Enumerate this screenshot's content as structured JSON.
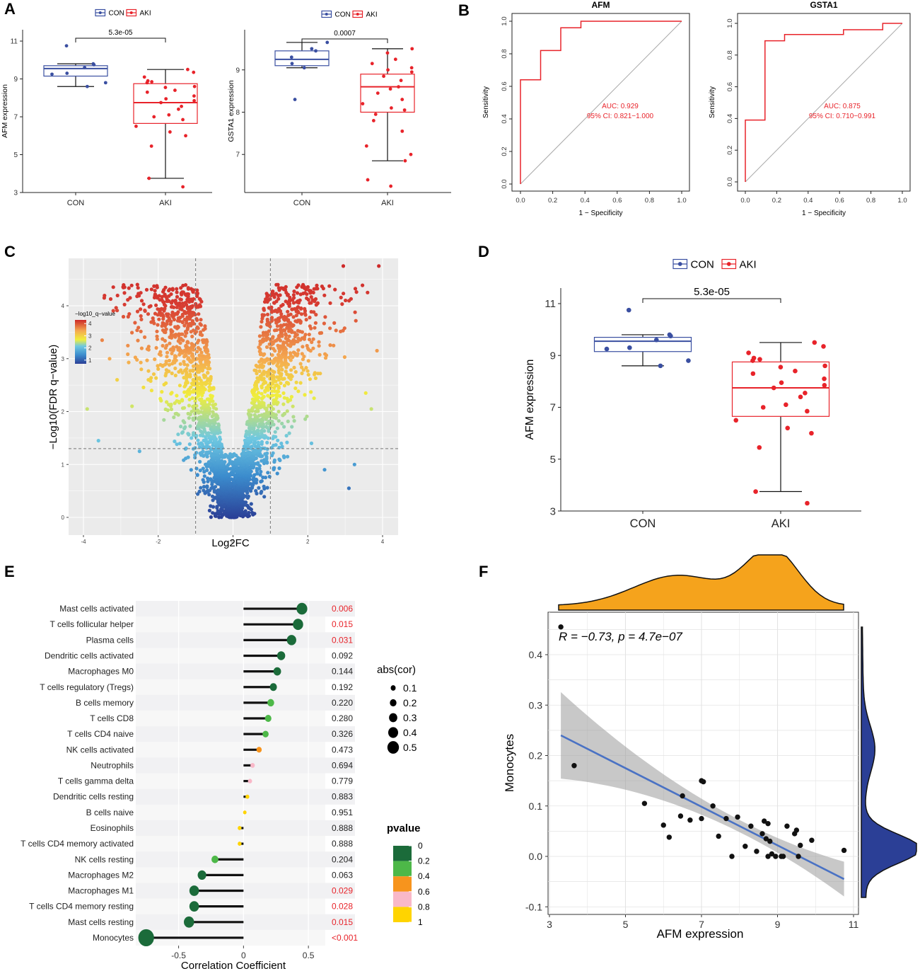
{
  "colors": {
    "con": "#3a4fa1",
    "aki": "#e8232a",
    "roc": "#e8232a",
    "diag": "#a8a8a8",
    "loess": "#4a72c4",
    "orange": "#f5a31c",
    "navy": "#2b3f96"
  },
  "panel_labels": {
    "A": "A",
    "B": "B",
    "C": "C",
    "D": "D",
    "E": "E",
    "F": "F"
  },
  "chart_data": [
    {
      "id": "A1",
      "type": "box",
      "legend": [
        "CON",
        "AKI"
      ],
      "categories": [
        "CON",
        "AKI"
      ],
      "ylabel": "AFM expression",
      "ylim": [
        3,
        11.6
      ],
      "yticks": [
        3,
        5,
        7,
        9,
        11
      ],
      "pvalue": "5.3e-05",
      "boxes": [
        {
          "group": "CON",
          "q1": 9.15,
          "median": 9.55,
          "q3": 9.7,
          "whisker_low": 8.6,
          "whisker_high": 9.8
        },
        {
          "group": "AKI",
          "q1": 6.65,
          "median": 7.75,
          "q3": 8.75,
          "whisker_low": 3.75,
          "whisker_high": 9.5
        }
      ],
      "points": {
        "CON": [
          10.75,
          9.8,
          9.75,
          9.6,
          9.3,
          9.25,
          8.8,
          8.6
        ],
        "AKI": [
          9.5,
          9.35,
          9.1,
          8.9,
          8.85,
          8.8,
          8.6,
          8.55,
          8.4,
          8.3,
          8.1,
          7.95,
          7.85,
          7.75,
          7.55,
          7.4,
          7.1,
          7.0,
          6.85,
          6.5,
          6.2,
          6.0,
          5.45,
          3.75,
          3.3
        ]
      }
    },
    {
      "id": "A2",
      "type": "box",
      "legend": [
        "CON",
        "AKI"
      ],
      "categories": [
        "CON",
        "AKI"
      ],
      "ylabel": "GSTA1 expression",
      "ylim": [
        6.1,
        9.95
      ],
      "yticks": [
        7,
        8,
        9
      ],
      "pvalue": "0.0007",
      "boxes": [
        {
          "group": "CON",
          "q1": 9.1,
          "median": 9.25,
          "q3": 9.45,
          "whisker_low": 9.05,
          "whisker_high": 9.65
        },
        {
          "group": "AKI",
          "q1": 8.0,
          "median": 8.6,
          "q3": 8.9,
          "whisker_low": 6.85,
          "whisker_high": 9.5
        }
      ],
      "points": {
        "CON": [
          9.65,
          9.5,
          9.45,
          9.3,
          9.15,
          9.05,
          8.3
        ],
        "AKI": [
          9.5,
          9.4,
          9.25,
          9.15,
          9.05,
          9.0,
          8.95,
          8.85,
          8.75,
          8.6,
          8.55,
          8.45,
          8.3,
          8.2,
          8.1,
          8.05,
          7.95,
          7.8,
          7.55,
          7.2,
          7.0,
          6.85,
          6.4,
          6.25
        ]
      }
    },
    {
      "id": "B1",
      "type": "line",
      "title": "AFM",
      "xlabel": "1 − Specificity",
      "ylabel": "Sensitivity",
      "xlim": [
        0,
        1
      ],
      "ylim": [
        0,
        1
      ],
      "xticks": [
        0.0,
        0.2,
        0.4,
        0.6,
        0.8,
        1.0
      ],
      "yticks": [
        0.0,
        0.2,
        0.4,
        0.6,
        0.8,
        1.0
      ],
      "x": [
        0,
        0,
        0.125,
        0.125,
        0.25,
        0.25,
        0.375,
        0.375,
        1.0
      ],
      "y": [
        0,
        0.64,
        0.64,
        0.82,
        0.82,
        0.96,
        0.96,
        1.0,
        1.0
      ],
      "annotation": [
        "AUC: 0.929",
        "95% CI: 0.821−1.000"
      ]
    },
    {
      "id": "B2",
      "type": "line",
      "title": "GSTA1",
      "xlabel": "1 − Specificity",
      "ylabel": "Sensitivity",
      "xlim": [
        0,
        1
      ],
      "ylim": [
        0,
        1
      ],
      "xticks": [
        0.0,
        0.2,
        0.4,
        0.6,
        0.8,
        1.0
      ],
      "yticks": [
        0.0,
        0.2,
        0.4,
        0.6,
        0.8,
        1.0
      ],
      "x": [
        0,
        0,
        0.125,
        0.125,
        0.25,
        0.25,
        0.625,
        0.625,
        0.875,
        0.875,
        1.0
      ],
      "y": [
        0,
        0.39,
        0.39,
        0.89,
        0.89,
        0.93,
        0.93,
        0.96,
        0.96,
        1.0,
        1.0
      ],
      "annotation": [
        "AUC: 0.875",
        "95% CI: 0.710−0.991"
      ]
    },
    {
      "id": "C",
      "type": "scatter",
      "xlabel": "Log2FC",
      "ylabel": "−Log10(FDR q−value)",
      "xlim": [
        -4.2,
        4.2
      ],
      "ylim": [
        -0.1,
        4.9
      ],
      "xticks": [
        -4,
        -2,
        0,
        2,
        4
      ],
      "yticks": [
        0,
        1,
        2,
        3,
        4
      ],
      "vlines": [
        -1,
        1
      ],
      "hline": 1.3,
      "colorbar_title": "−log10_q−value",
      "colorbar_ticks": [
        1,
        2,
        3,
        4
      ],
      "note": "volcano plot of several thousand genes; x = log2FC, y = −log10 q-value"
    },
    {
      "id": "D",
      "type": "box",
      "legend": [
        "CON",
        "AKI"
      ],
      "categories": [
        "CON",
        "AKI"
      ],
      "ylabel": "AFM expression",
      "ylim": [
        3,
        11.6
      ],
      "yticks": [
        3,
        5,
        7,
        9,
        11
      ],
      "pvalue": "5.3e-05",
      "boxes": [
        {
          "group": "CON",
          "q1": 9.15,
          "median": 9.55,
          "q3": 9.7,
          "whisker_low": 8.6,
          "whisker_high": 9.8
        },
        {
          "group": "AKI",
          "q1": 6.65,
          "median": 7.75,
          "q3": 8.75,
          "whisker_low": 3.75,
          "whisker_high": 9.5
        }
      ],
      "points": {
        "CON": [
          10.75,
          9.8,
          9.75,
          9.6,
          9.3,
          9.25,
          8.8,
          8.6
        ],
        "AKI": [
          9.5,
          9.35,
          9.1,
          8.9,
          8.85,
          8.8,
          8.6,
          8.55,
          8.4,
          8.3,
          8.1,
          7.95,
          7.85,
          7.75,
          7.55,
          7.4,
          7.1,
          7.0,
          6.85,
          6.5,
          6.2,
          6.0,
          5.45,
          3.75,
          3.3
        ]
      }
    },
    {
      "id": "E",
      "type": "lollipop",
      "xlabel": "Correlation Coefficient",
      "xlim": [
        -0.83,
        0.63
      ],
      "xticks": [
        -0.5,
        0,
        0.5
      ],
      "size_legend_title": "abs(cor)",
      "size_legend": [
        0.1,
        0.2,
        0.3,
        0.4,
        0.5
      ],
      "color_legend_title": "pvalue",
      "color_legend": [
        "0",
        "0.2",
        "0.4",
        "0.6",
        "0.8",
        "1"
      ],
      "color_scale": [
        "#1b6b3a",
        "#4db848",
        "#f7941d",
        "#f9b8c8",
        "#ffd400"
      ],
      "rows": [
        {
          "cell": "Mast cells activated",
          "cor": 0.45,
          "pvalue": "0.006"
        },
        {
          "cell": "T cells follicular helper",
          "cor": 0.42,
          "pvalue": "0.015"
        },
        {
          "cell": "Plasma cells",
          "cor": 0.37,
          "pvalue": "0.031"
        },
        {
          "cell": "Dendritic cells activated",
          "cor": 0.29,
          "pvalue": "0.092"
        },
        {
          "cell": "Macrophages M0",
          "cor": 0.26,
          "pvalue": "0.144"
        },
        {
          "cell": "T cells regulatory (Tregs)",
          "cor": 0.23,
          "pvalue": "0.192"
        },
        {
          "cell": "B cells memory",
          "cor": 0.21,
          "pvalue": "0.220"
        },
        {
          "cell": "T cells CD8",
          "cor": 0.19,
          "pvalue": "0.280"
        },
        {
          "cell": "T cells CD4 naive",
          "cor": 0.17,
          "pvalue": "0.326"
        },
        {
          "cell": "NK cells activated",
          "cor": 0.12,
          "pvalue": "0.473"
        },
        {
          "cell": "Neutrophils",
          "cor": 0.07,
          "pvalue": "0.694"
        },
        {
          "cell": "T cells gamma delta",
          "cor": 0.05,
          "pvalue": "0.779"
        },
        {
          "cell": "Dendritic cells resting",
          "cor": 0.03,
          "pvalue": "0.883"
        },
        {
          "cell": "B cells naive",
          "cor": 0.01,
          "pvalue": "0.951"
        },
        {
          "cell": "Eosinophils",
          "cor": -0.03,
          "pvalue": "0.888"
        },
        {
          "cell": "T cells CD4 memory activated",
          "cor": -0.03,
          "pvalue": "0.888"
        },
        {
          "cell": "NK cells resting",
          "cor": -0.22,
          "pvalue": "0.204"
        },
        {
          "cell": "Macrophages M2",
          "cor": -0.32,
          "pvalue": "0.063"
        },
        {
          "cell": "Macrophages M1",
          "cor": -0.38,
          "pvalue": "0.029"
        },
        {
          "cell": "T cells CD4 memory resting",
          "cor": -0.38,
          "pvalue": "0.028"
        },
        {
          "cell": "Mast cells resting",
          "cor": -0.42,
          "pvalue": "0.015"
        },
        {
          "cell": "Monocytes",
          "cor": -0.75,
          "pvalue": "<0.001"
        }
      ]
    },
    {
      "id": "F",
      "type": "scatter",
      "xlabel": "AFM expression",
      "ylabel": "Monocytes",
      "xlim": [
        3,
        11
      ],
      "ylim": [
        -0.105,
        0.48
      ],
      "xticks": [
        3,
        5,
        7,
        9,
        11
      ],
      "yticks": [
        -0.1,
        0.0,
        0.1,
        0.2,
        0.3,
        0.4
      ],
      "annotation": "R = −0.73, p = 4.7e−07",
      "fit_line": {
        "x": [
          3.3,
          10.75
        ],
        "y": [
          0.24,
          -0.045
        ]
      },
      "points": [
        [
          3.3,
          0.455
        ],
        [
          3.65,
          0.18
        ],
        [
          5.5,
          0.105
        ],
        [
          6.0,
          0.062
        ],
        [
          6.15,
          0.038
        ],
        [
          6.45,
          0.08
        ],
        [
          6.5,
          0.12
        ],
        [
          6.7,
          0.072
        ],
        [
          7.0,
          0.15
        ],
        [
          7.05,
          0.148
        ],
        [
          7.0,
          0.075
        ],
        [
          7.3,
          0.1
        ],
        [
          7.45,
          0.04
        ],
        [
          7.65,
          0.075
        ],
        [
          7.8,
          0.0
        ],
        [
          7.95,
          0.078
        ],
        [
          8.15,
          0.02
        ],
        [
          8.3,
          0.06
        ],
        [
          8.45,
          0.01
        ],
        [
          8.6,
          0.045
        ],
        [
          8.65,
          0.07
        ],
        [
          8.75,
          0.065
        ],
        [
          8.7,
          0.035
        ],
        [
          8.8,
          0.03
        ],
        [
          8.75,
          0.0
        ],
        [
          8.85,
          0.005
        ],
        [
          8.95,
          0.0
        ],
        [
          9.1,
          0.0
        ],
        [
          9.15,
          0.0
        ],
        [
          9.25,
          0.06
        ],
        [
          9.45,
          0.045
        ],
        [
          9.5,
          0.052
        ],
        [
          9.55,
          0.0
        ],
        [
          9.6,
          0.022
        ],
        [
          9.9,
          0.032
        ],
        [
          10.75,
          0.012
        ]
      ]
    }
  ]
}
